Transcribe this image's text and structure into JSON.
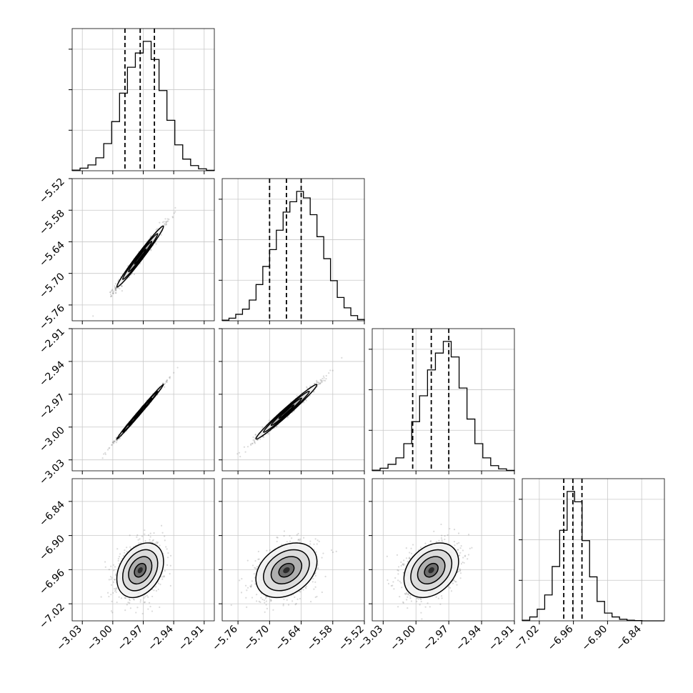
{
  "chart_data": [
    {
      "type": "corner",
      "axes_ticks": [
        {
          "axis": "x",
          "ticks": [
            "−3.03",
            "−3.00",
            "−2.97",
            "−2.94",
            "−2.91"
          ]
        },
        {
          "axis": "x",
          "ticks": [
            "−5.76",
            "−5.70",
            "−5.64",
            "−5.58",
            "−5.52"
          ]
        },
        {
          "axis": "x",
          "ticks": [
            "−3.03",
            "−3.00",
            "−2.97",
            "−2.94",
            "−2.91"
          ]
        },
        {
          "axis": "x",
          "ticks": [
            "−7.02",
            "−6.96",
            "−6.90",
            "−6.84"
          ]
        },
        {
          "axis": "y",
          "ticks": [
            "−5.52",
            "−5.58",
            "−5.64",
            "−5.70",
            "−5.76"
          ]
        },
        {
          "axis": "y",
          "ticks": [
            "−2.91",
            "−2.94",
            "−2.97",
            "−3.00",
            "−3.03"
          ]
        },
        {
          "axis": "y",
          "ticks": [
            "−6.84",
            "−6.90",
            "−6.96",
            "−7.02"
          ]
        }
      ],
      "parameters": [
        {
          "range": [
            -3.04,
            -2.9
          ],
          "ticks": [
            -3.03,
            -3.0,
            -2.97,
            -2.94,
            -2.91
          ],
          "quantiles": [
            -2.988,
            -2.973,
            -2.959
          ],
          "hist": [
            0.5,
            2,
            4.5,
            10,
            21,
            38,
            60,
            80,
            91,
            100,
            86,
            62,
            39,
            20,
            9,
            4,
            1.5,
            0.3
          ]
        },
        {
          "range": [
            -5.79,
            -5.52
          ],
          "ticks": [
            -5.76,
            -5.7,
            -5.64,
            -5.58,
            -5.52
          ],
          "quantiles": [
            -5.7,
            -5.668,
            -5.64
          ],
          "hist": [
            0.5,
            2,
            5,
            9,
            16,
            28,
            42,
            55,
            70,
            84,
            92,
            100,
            95,
            82,
            65,
            48,
            31,
            18,
            10,
            4,
            1
          ]
        },
        {
          "range": [
            -3.04,
            -2.91
          ],
          "ticks": [
            -3.03,
            -3.0,
            -2.97,
            -2.94,
            -2.91
          ],
          "quantiles": [
            -3.003,
            -2.986,
            -2.97
          ],
          "hist": [
            0.5,
            2,
            5,
            10,
            21,
            38,
            58,
            78,
            91,
            100,
            88,
            64,
            40,
            21,
            10,
            4,
            1.5,
            0.3
          ]
        },
        {
          "range": [
            -7.05,
            -6.8
          ],
          "ticks": [
            -7.02,
            -6.96,
            -6.9,
            -6.84
          ],
          "quantiles": [
            -6.977,
            -6.961,
            -6.945
          ],
          "hist": [
            0.5,
            3,
            9,
            20,
            42,
            70,
            100,
            92,
            62,
            34,
            15,
            6,
            3,
            1.2,
            0.5,
            0.2,
            0,
            0,
            0
          ]
        }
      ],
      "pairs": [
        {
          "row": 1,
          "col": 0,
          "mean": [
            -2.973,
            -5.668
          ],
          "sd": [
            0.0115,
            0.029
          ],
          "rho": 0.985
        },
        {
          "row": 2,
          "col": 0,
          "mean": [
            -2.973,
            -2.986
          ],
          "sd": [
            0.0115,
            0.0125
          ],
          "rho": 0.996
        },
        {
          "row": 2,
          "col": 1,
          "mean": [
            -5.668,
            -2.986
          ],
          "sd": [
            0.029,
            0.0125
          ],
          "rho": 0.985
        },
        {
          "row": 3,
          "col": 0,
          "mean": [
            -2.973,
            -6.961
          ],
          "sd": [
            0.0115,
            0.024
          ],
          "rho": 0.32
        },
        {
          "row": 3,
          "col": 1,
          "mean": [
            -5.668,
            -6.961
          ],
          "sd": [
            0.029,
            0.024
          ],
          "rho": 0.32
        },
        {
          "row": 3,
          "col": 2,
          "mean": [
            -2.986,
            -6.961
          ],
          "sd": [
            0.0125,
            0.024
          ],
          "rho": 0.32
        }
      ]
    }
  ]
}
